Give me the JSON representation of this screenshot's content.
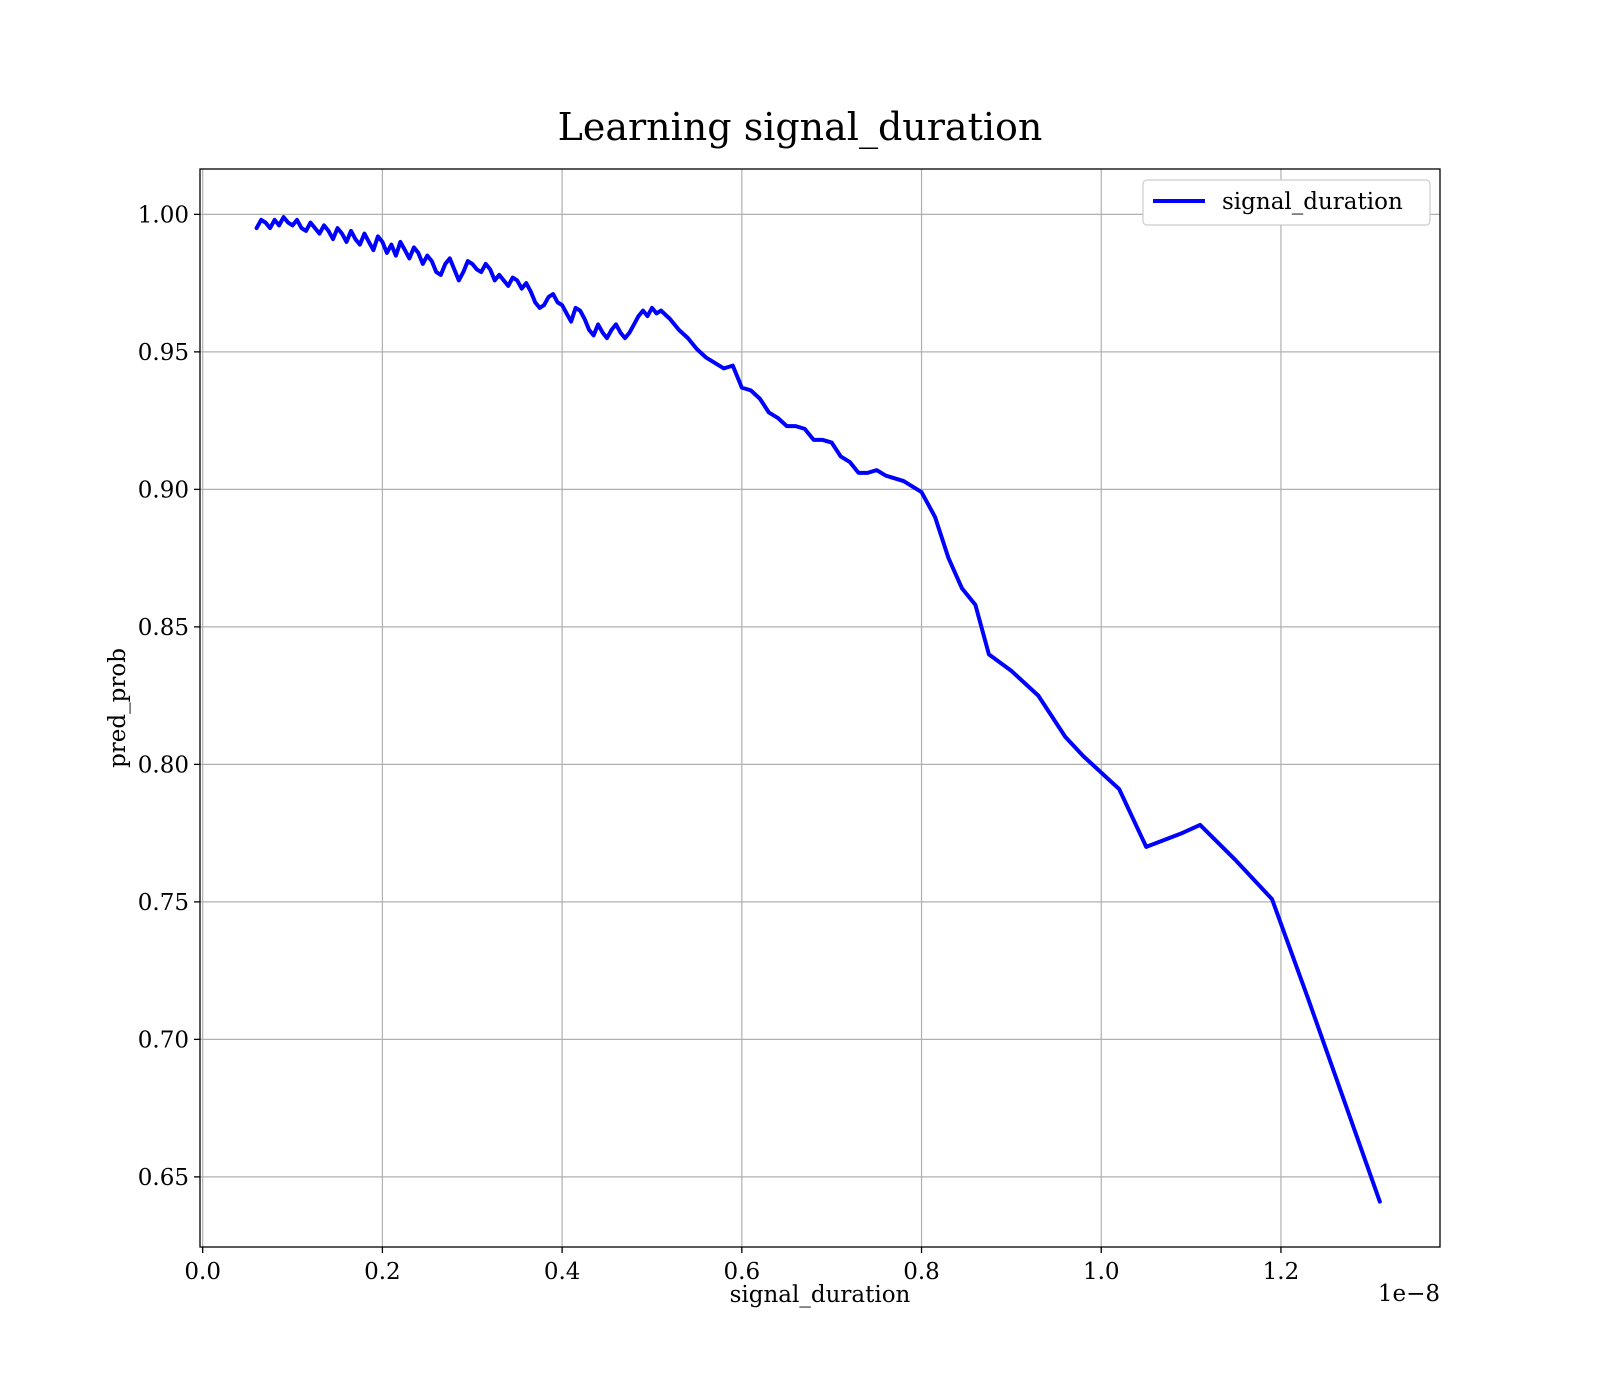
{
  "chart_data": {
    "type": "line",
    "title": "Learning signal_duration",
    "xlabel": "signal_duration",
    "ylabel": "pred_prob",
    "x_offset_label": "1e−8",
    "xlim": [
      -0.003,
      1.377
    ],
    "ylim": [
      0.6245,
      1.0165
    ],
    "x_scale_factor": 1e-08,
    "xticks": [
      0.0,
      0.2,
      0.4,
      0.6,
      0.8,
      1.0,
      1.2
    ],
    "xtick_labels": [
      "0.0",
      "0.2",
      "0.4",
      "0.6",
      "0.8",
      "1.0",
      "1.2"
    ],
    "yticks": [
      0.65,
      0.7,
      0.75,
      0.8,
      0.85,
      0.9,
      0.95,
      1.0
    ],
    "ytick_labels": [
      "0.65",
      "0.70",
      "0.75",
      "0.80",
      "0.85",
      "0.90",
      "0.95",
      "1.00"
    ],
    "grid": true,
    "legend_position": "top-right",
    "series": [
      {
        "name": "signal_duration",
        "color": "#0000ff",
        "x": [
          0.06,
          0.065,
          0.07,
          0.075,
          0.08,
          0.085,
          0.09,
          0.095,
          0.1,
          0.105,
          0.11,
          0.115,
          0.12,
          0.125,
          0.13,
          0.135,
          0.14,
          0.145,
          0.15,
          0.155,
          0.16,
          0.165,
          0.17,
          0.175,
          0.18,
          0.185,
          0.19,
          0.195,
          0.2,
          0.205,
          0.21,
          0.215,
          0.22,
          0.225,
          0.23,
          0.235,
          0.24,
          0.245,
          0.25,
          0.255,
          0.26,
          0.265,
          0.27,
          0.275,
          0.28,
          0.285,
          0.29,
          0.295,
          0.3,
          0.305,
          0.31,
          0.315,
          0.32,
          0.325,
          0.33,
          0.335,
          0.34,
          0.345,
          0.35,
          0.355,
          0.36,
          0.365,
          0.37,
          0.375,
          0.38,
          0.385,
          0.39,
          0.395,
          0.4,
          0.405,
          0.41,
          0.415,
          0.42,
          0.425,
          0.43,
          0.435,
          0.44,
          0.445,
          0.45,
          0.455,
          0.46,
          0.465,
          0.47,
          0.475,
          0.48,
          0.485,
          0.49,
          0.495,
          0.5,
          0.505,
          0.51,
          0.52,
          0.53,
          0.54,
          0.545,
          0.55,
          0.56,
          0.57,
          0.58,
          0.59,
          0.6,
          0.61,
          0.62,
          0.63,
          0.64,
          0.65,
          0.66,
          0.67,
          0.68,
          0.69,
          0.7,
          0.71,
          0.72,
          0.73,
          0.74,
          0.75,
          0.76,
          0.78,
          0.8,
          0.815,
          0.83,
          0.845,
          0.86,
          0.875,
          0.9,
          0.93,
          0.96,
          0.98,
          1.02,
          1.05,
          1.09,
          1.11,
          1.15,
          1.19,
          1.23,
          1.27,
          1.31
        ],
        "y": [
          0.995,
          0.998,
          0.997,
          0.995,
          0.998,
          0.996,
          0.999,
          0.997,
          0.996,
          0.998,
          0.995,
          0.994,
          0.997,
          0.995,
          0.993,
          0.996,
          0.994,
          0.991,
          0.995,
          0.993,
          0.99,
          0.994,
          0.991,
          0.989,
          0.993,
          0.99,
          0.987,
          0.992,
          0.99,
          0.986,
          0.989,
          0.985,
          0.99,
          0.987,
          0.984,
          0.988,
          0.986,
          0.982,
          0.985,
          0.983,
          0.979,
          0.978,
          0.982,
          0.984,
          0.98,
          0.976,
          0.979,
          0.983,
          0.982,
          0.98,
          0.979,
          0.982,
          0.98,
          0.976,
          0.978,
          0.976,
          0.974,
          0.977,
          0.976,
          0.973,
          0.975,
          0.972,
          0.968,
          0.966,
          0.967,
          0.97,
          0.971,
          0.968,
          0.967,
          0.964,
          0.961,
          0.966,
          0.965,
          0.962,
          0.958,
          0.956,
          0.96,
          0.957,
          0.955,
          0.958,
          0.96,
          0.957,
          0.955,
          0.957,
          0.96,
          0.963,
          0.965,
          0.963,
          0.966,
          0.964,
          0.965,
          0.962,
          0.958,
          0.955,
          0.953,
          0.951,
          0.948,
          0.946,
          0.944,
          0.945,
          0.937,
          0.936,
          0.933,
          0.928,
          0.926,
          0.923,
          0.923,
          0.922,
          0.918,
          0.918,
          0.917,
          0.912,
          0.91,
          0.906,
          0.906,
          0.907,
          0.905,
          0.903,
          0.899,
          0.89,
          0.875,
          0.864,
          0.858,
          0.84,
          0.834,
          0.825,
          0.81,
          0.803,
          0.791,
          0.77,
          0.775,
          0.778,
          0.765,
          0.751,
          0.715,
          0.678,
          0.641
        ]
      }
    ]
  }
}
